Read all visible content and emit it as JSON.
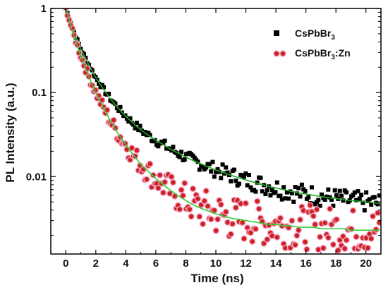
{
  "chart_data": {
    "type": "scatter",
    "xlabel": "Time (ns)",
    "ylabel": "PL Intensity (a.u.)",
    "xlim": [
      -1,
      21
    ],
    "ylim": [
      0.0012,
      1.0
    ],
    "yscale": "log",
    "x_ticks": [
      0,
      2,
      4,
      6,
      8,
      10,
      12,
      14,
      16,
      18,
      20
    ],
    "y_ticks": [
      {
        "value": 1,
        "label": "1"
      },
      {
        "value": 0.1,
        "label": "0.1"
      },
      {
        "value": 0.01,
        "label": "0.01"
      }
    ],
    "grid": false,
    "legend_position": "top-right",
    "series": [
      {
        "name_main": "CsPbBr",
        "name_sub": "3",
        "name_tail": "",
        "marker": "square",
        "color": "#000000",
        "fit_color": "#22aa22",
        "x": [
          0,
          0.5,
          1,
          1.5,
          2,
          2.5,
          3,
          3.5,
          4,
          4.5,
          5,
          5.5,
          6,
          6.5,
          7,
          7.5,
          8,
          8.5,
          9,
          9.5,
          10,
          10.5,
          11,
          11.5,
          12,
          12.5,
          13,
          13.5,
          14,
          14.5,
          15,
          15.5,
          16,
          16.5,
          17,
          17.5,
          18,
          18.5,
          19,
          19.5,
          20,
          20.5,
          21
        ],
        "y": [
          1.0,
          0.55,
          0.33,
          0.22,
          0.15,
          0.11,
          0.083,
          0.065,
          0.052,
          0.043,
          0.036,
          0.031,
          0.027,
          0.024,
          0.021,
          0.019,
          0.017,
          0.0155,
          0.0142,
          0.013,
          0.012,
          0.0112,
          0.0104,
          0.0097,
          0.0091,
          0.0086,
          0.0081,
          0.0077,
          0.0073,
          0.007,
          0.0067,
          0.0064,
          0.0062,
          0.006,
          0.0058,
          0.0056,
          0.0055,
          0.0053,
          0.0052,
          0.0051,
          0.005,
          0.0049,
          0.0048
        ]
      },
      {
        "name_main": "CsPbBr",
        "name_sub": "3",
        "name_tail": ":Zn",
        "marker": "circle",
        "color": "#cc2222",
        "fit_color": "#33cc33",
        "x": [
          0,
          0.5,
          1,
          1.5,
          2,
          2.5,
          3,
          3.5,
          4,
          4.5,
          5,
          5.5,
          6,
          6.5,
          7,
          7.5,
          8,
          8.5,
          9,
          9.5,
          10,
          10.5,
          11,
          11.5,
          12,
          12.5,
          13,
          13.5,
          14,
          14.5,
          15,
          15.5,
          16,
          16.5,
          17,
          17.5,
          18,
          18.5,
          19,
          19.5,
          20,
          20.5,
          21
        ],
        "y": [
          1.0,
          0.5,
          0.27,
          0.16,
          0.1,
          0.066,
          0.045,
          0.032,
          0.024,
          0.018,
          0.014,
          0.0115,
          0.0095,
          0.008,
          0.0068,
          0.0059,
          0.0052,
          0.0046,
          0.0042,
          0.0039,
          0.0036,
          0.0034,
          0.0032,
          0.0031,
          0.003,
          0.0029,
          0.0028,
          0.0027,
          0.0027,
          0.0026,
          0.0026,
          0.0025,
          0.0025,
          0.0025,
          0.0024,
          0.0024,
          0.0024,
          0.0024,
          0.0023,
          0.0023,
          0.0023,
          0.0023,
          0.0023
        ]
      }
    ]
  }
}
